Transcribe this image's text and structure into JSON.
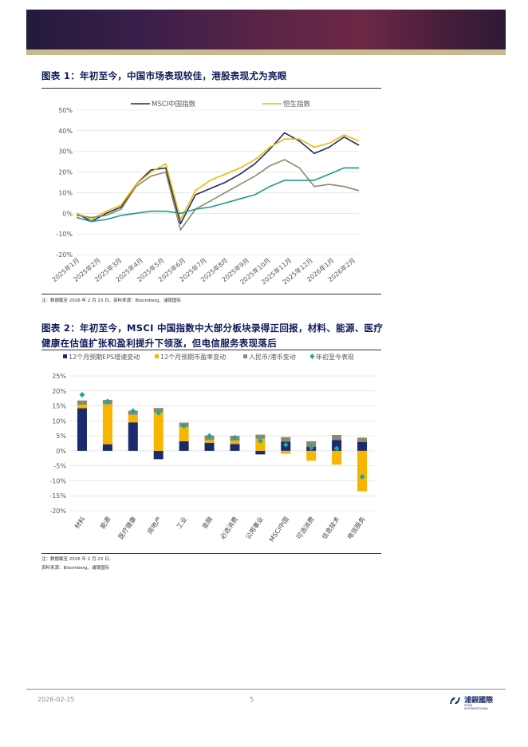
{
  "fig1": {
    "title": "图表 1：年初至今，中国市场表现较佳，港股表现尤为亮眼",
    "note": "注：数据截至 2026 年 2 月 23 日。资料来源：Bloomberg、浦银国际",
    "chart_data": {
      "type": "line",
      "legend_placement": "top",
      "ylim": [
        -20,
        50
      ],
      "y_ticks": [
        "50%",
        "40%",
        "30%",
        "20%",
        "10%",
        "0%",
        "-10%",
        "-20%"
      ],
      "x_ticks": [
        "2025年1月",
        "2025年2月",
        "2025年3月",
        "2025年4月",
        "2025年5月",
        "2025年6月",
        "2025年7月",
        "2025年8月",
        "2025年9月",
        "2025年10月",
        "2025年11月",
        "2025年12月",
        "2026年1月",
        "2026年2月"
      ],
      "series": [
        {
          "name": "MSCI中国指数",
          "color": "#1a2a6c",
          "values": [
            0,
            -4,
            0,
            3,
            14,
            21,
            22,
            -5,
            9,
            12,
            15,
            19,
            24,
            31,
            39,
            35,
            29,
            32,
            37,
            33
          ]
        },
        {
          "name": "恒生指数",
          "color": "#f2b900",
          "values": [
            0,
            -3,
            1,
            4,
            14,
            20,
            24,
            -3,
            11,
            16,
            19,
            22,
            26,
            32,
            36,
            36,
            32,
            34,
            38,
            35
          ]
        },
        {
          "name": "",
          "color": "#8c8a6e",
          "values": [
            -1,
            -2,
            -1,
            2,
            13,
            18,
            20,
            -8,
            2,
            6,
            10,
            14,
            18,
            23,
            26,
            22,
            13,
            14,
            13,
            11
          ]
        },
        {
          "name": "",
          "color": "#1f9a8e",
          "values": [
            -2,
            -4,
            -3,
            -1,
            0,
            1,
            1,
            0,
            2,
            3,
            5,
            7,
            9,
            13,
            16,
            16,
            16,
            19,
            22,
            22
          ]
        }
      ]
    }
  },
  "fig2": {
    "title": "图表 2：年初至今，MSCI 中国指数中大部分板块录得正回报，材料、能源、医疗健康在估值扩张和盈利提升下领涨，但电信服务表现落后",
    "note1": "注：数据截至 2026 年 2 月 23 日。",
    "note2": "资料来源：Bloomberg、浦银国际",
    "chart_data": {
      "type": "bar",
      "legend_placement": "top",
      "ylim": [
        -20,
        25
      ],
      "y_ticks": [
        "25%",
        "20%",
        "15%",
        "10%",
        "5%",
        "0%",
        "-5%",
        "-10%",
        "-15%",
        "-20%"
      ],
      "categories": [
        "材料",
        "能源",
        "医疗健康",
        "房地产",
        "工业",
        "金融",
        "必选消费",
        "公用事业",
        "MSCI中国",
        "可选消费",
        "信息技术",
        "电信服务"
      ],
      "series": [
        {
          "name": "12个月预期EPS增速变动",
          "color": "#1a2a6c",
          "values": [
            14.2,
            2.2,
            9.5,
            -2.8,
            3.2,
            2.7,
            2.3,
            -1.2,
            3.1,
            1.4,
            3.6,
            2.9
          ]
        },
        {
          "name": "12个月预期市盈率变动",
          "color": "#f7b500",
          "values": [
            1.2,
            13.3,
            2.5,
            12.8,
            4.8,
            0.9,
            1.1,
            4.0,
            -1.0,
            -3.3,
            -4.6,
            -13.5
          ]
        },
        {
          "name": "人民币/港币变动",
          "color": "#8c8a6e",
          "values": [
            1.4,
            1.5,
            1.4,
            1.5,
            1.4,
            1.5,
            1.6,
            1.4,
            1.5,
            1.8,
            1.7,
            1.5
          ]
        },
        {
          "name": "年初至今表现",
          "color": "#1fa59a",
          "values": [
            18.7,
            16.5,
            13.3,
            12.7,
            8.3,
            5.0,
            4.4,
            3.3,
            2.0,
            1.0,
            0.8,
            -8.7
          ]
        }
      ]
    }
  },
  "footer": {
    "date": "2026-02-25",
    "page": "5",
    "logo_cn": "浦銀國際",
    "logo_en": "SPDB INTERNATIONAL"
  }
}
